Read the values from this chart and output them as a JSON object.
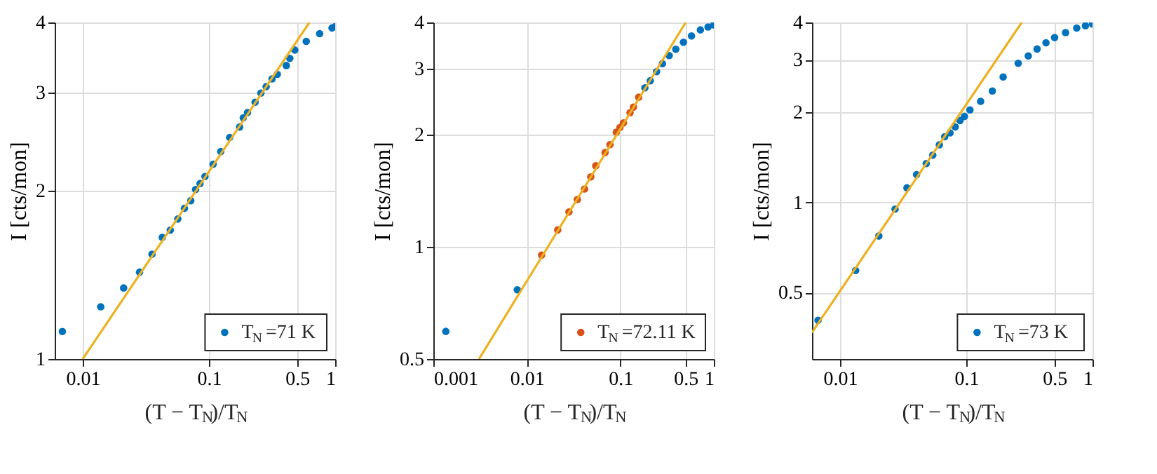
{
  "chart_data": [
    {
      "type": "scatter",
      "xlabel": "(T − T$_{N}$)/T$_{N}$",
      "ylabel": "I [cts/mon]",
      "xlim": [
        0.006,
        1
      ],
      "ylim": [
        1,
        4
      ],
      "xticks": [
        0.01,
        0.1,
        0.5,
        1
      ],
      "yticks": [
        1,
        2,
        3,
        4
      ],
      "log": "xy",
      "grid": true,
      "legend": "bottom right",
      "marker": "circle",
      "series": [
        {
          "name": "T$_{N}$ =71 K",
          "color": "#0072bd",
          "x": [
            0.0069,
            0.0139,
            0.0211,
            0.0282,
            0.0354,
            0.0427,
            0.0494,
            0.0567,
            0.064,
            0.0718,
            0.0784,
            0.085,
            0.093,
            0.108,
            0.124,
            0.146,
            0.175,
            0.187,
            0.202,
            0.232,
            0.258,
            0.284,
            0.316,
            0.348,
            0.41,
            0.437,
            0.479,
            0.59,
            0.753,
            0.944,
            1.0
          ],
          "values": [
            1.12,
            1.24,
            1.34,
            1.43,
            1.54,
            1.65,
            1.7,
            1.78,
            1.86,
            1.92,
            2.01,
            2.06,
            2.12,
            2.23,
            2.35,
            2.49,
            2.6,
            2.7,
            2.76,
            2.88,
            2.99,
            3.07,
            3.17,
            3.23,
            3.35,
            3.45,
            3.57,
            3.7,
            3.82,
            3.91,
            3.93
          ]
        },
        {
          "type": "line",
          "color": "#edb120",
          "marker": "none",
          "x": [
            0.01,
            0.625
          ],
          "values": [
            1,
            4
          ]
        }
      ]
    },
    {
      "type": "scatter",
      "xlabel": "(T − T$_{N}$)/T$_{N}$",
      "ylabel": "I [cts/mon]",
      "xlim": [
        0.001,
        1
      ],
      "ylim": [
        0.5,
        4
      ],
      "xticks": [
        0.001,
        0.01,
        0.1,
        0.5,
        1
      ],
      "yticks": [
        0.5,
        1,
        2,
        3,
        4
      ],
      "log": "xy",
      "grid": true,
      "legend": "bottom right",
      "marker": "circle",
      "series": [
        {
          "color": "#0072bd",
          "x": [
            0.00136,
            0.0079,
            0.183,
            0.209,
            0.244,
            0.282,
            0.333,
            0.392,
            0.473,
            0.577,
            0.718,
            0.867,
            1.0
          ],
          "values": [
            0.593,
            0.767,
            2.67,
            2.79,
            2.95,
            3.1,
            3.26,
            3.39,
            3.54,
            3.68,
            3.82,
            3.89,
            3.94
          ]
        },
        {
          "name": "T$_{N}$ =72.11 K",
          "color": "#d95319",
          "x": [
            0.0144,
            0.0214,
            0.0282,
            0.0347,
            0.0414,
            0.0483,
            0.0546,
            0.0687,
            0.0776,
            0.0906,
            0.099,
            0.108,
            0.127,
            0.138,
            0.157
          ],
          "values": [
            0.95,
            1.11,
            1.24,
            1.34,
            1.43,
            1.54,
            1.65,
            1.79,
            1.88,
            2.03,
            2.09,
            2.15,
            2.29,
            2.37,
            2.52
          ]
        },
        {
          "type": "line",
          "color": "#edb120",
          "marker": "none",
          "x": [
            0.00308,
            0.5
          ],
          "values": [
            0.5,
            4
          ]
        }
      ]
    },
    {
      "type": "scatter",
      "xlabel": "(T − T$_{N}$)/T$_{N}$",
      "ylabel": "I [cts/mon]",
      "xlim": [
        0.006,
        1
      ],
      "ylim": [
        0.3,
        4
      ],
      "xticks": [
        0.01,
        0.1,
        0.5,
        1
      ],
      "yticks": [
        0.5,
        1,
        2,
        3,
        4
      ],
      "log": "xy",
      "grid": true,
      "legend": "bottom right",
      "marker": "circle",
      "series": [
        {
          "name": "T$_{N}$ =73 K",
          "color": "#0072bd",
          "x": [
            0.0067,
            0.0133,
            0.0203,
            0.0273,
            0.0339,
            0.0404,
            0.0482,
            0.0543,
            0.0612,
            0.0675,
            0.0743,
            0.0818,
            0.0893,
            0.0968,
            0.107,
            0.13,
            0.161,
            0.196,
            0.258,
            0.31,
            0.364,
            0.428,
            0.501,
            0.612,
            0.75,
            0.879,
            1.0
          ],
          "values": [
            0.404,
            0.593,
            0.773,
            0.951,
            1.12,
            1.24,
            1.35,
            1.44,
            1.56,
            1.66,
            1.71,
            1.79,
            1.88,
            1.94,
            2.04,
            2.18,
            2.36,
            2.63,
            2.92,
            3.09,
            3.26,
            3.42,
            3.56,
            3.7,
            3.83,
            3.9,
            3.95
          ]
        },
        {
          "type": "line",
          "color": "#edb120",
          "marker": "none",
          "x": [
            0.006,
            0.275
          ],
          "values": [
            0.368,
            4
          ]
        }
      ]
    }
  ]
}
